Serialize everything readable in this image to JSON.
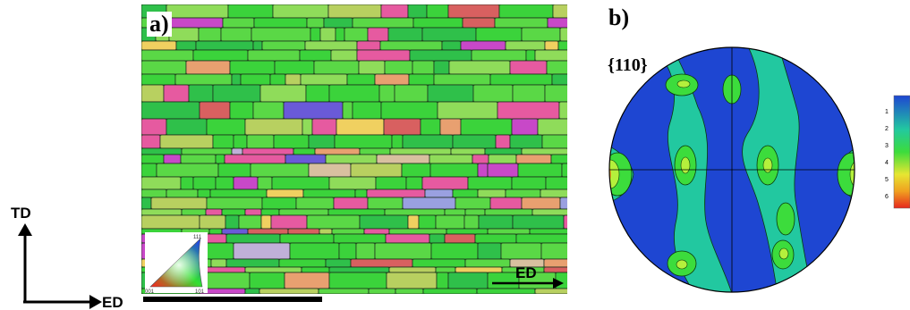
{
  "axes_diagram": {
    "vertical_label": "TD",
    "horizontal_label": "ED"
  },
  "map_panel": {
    "panel_label": "a)",
    "direction_label": "ED",
    "ipf_key": {
      "corner_top": "111",
      "corner_left": "001",
      "corner_right": "101"
    }
  },
  "pole_figure_panel": {
    "panel_label": "b)",
    "plane_family": "{110}",
    "colorbar_ticks": [
      "1",
      "2",
      "3",
      "4",
      "5",
      "6"
    ]
  },
  "colors": {
    "grain_green": "#3bd33b",
    "grain_pink": "#e65aa0",
    "pf_background": "#1e46d2",
    "pf_max": "#e6281e"
  }
}
